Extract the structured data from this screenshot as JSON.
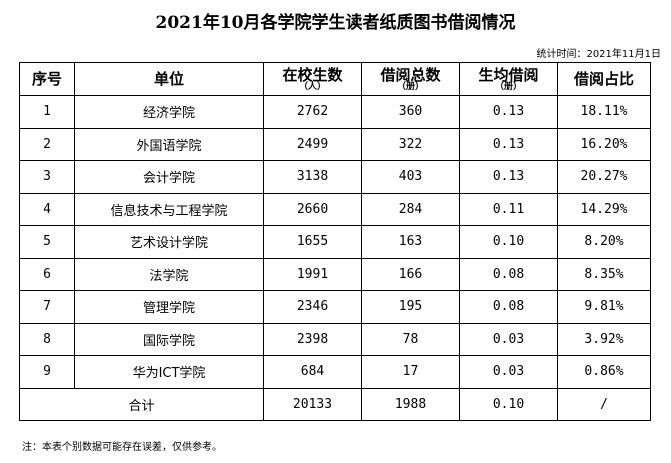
{
  "title": "2021年10月各学院学生读者纸质图书借阅情况",
  "stat_time": "统计时间：2021年11月1日",
  "headers": [
    {
      "main": "序号",
      "sub": ""
    },
    {
      "main": "单位",
      "sub": ""
    },
    {
      "main": "在校生数",
      "sub": "（人）"
    },
    {
      "main": "借阅总数",
      "sub": "（册）"
    },
    {
      "main": "生均借阅",
      "sub": "（册）"
    },
    {
      "main": "借阅占比",
      "sub": ""
    }
  ],
  "rows": [
    [
      "1",
      "经济学院",
      "2762",
      "360",
      "0.13",
      "18.11%"
    ],
    [
      "2",
      "外国语学院",
      "2499",
      "322",
      "0.13",
      "16.20%"
    ],
    [
      "3",
      "会计学院",
      "3138",
      "403",
      "0.13",
      "20.27%"
    ],
    [
      "4",
      "信息技术与工程学院",
      "2660",
      "284",
      "0.11",
      "14.29%"
    ],
    [
      "5",
      "艺术设计学院",
      "1655",
      "163",
      "0.10",
      "8.20%"
    ],
    [
      "6",
      "法学院",
      "1991",
      "166",
      "0.08",
      "8.35%"
    ],
    [
      "7",
      "管理学院",
      "2346",
      "195",
      "0.08",
      "9.81%"
    ],
    [
      "8",
      "国际学院",
      "2398",
      "78",
      "0.03",
      "3.92%"
    ],
    [
      "9",
      "华为ICT学院",
      "684",
      "17",
      "0.03",
      "0.86%"
    ]
  ],
  "total": {
    "label": "合计",
    "students": "20133",
    "borrowed": "1988",
    "per_capita": "0.10",
    "share": "/"
  },
  "note": "注：本表个别数据可能存在误差，仅供参考。"
}
